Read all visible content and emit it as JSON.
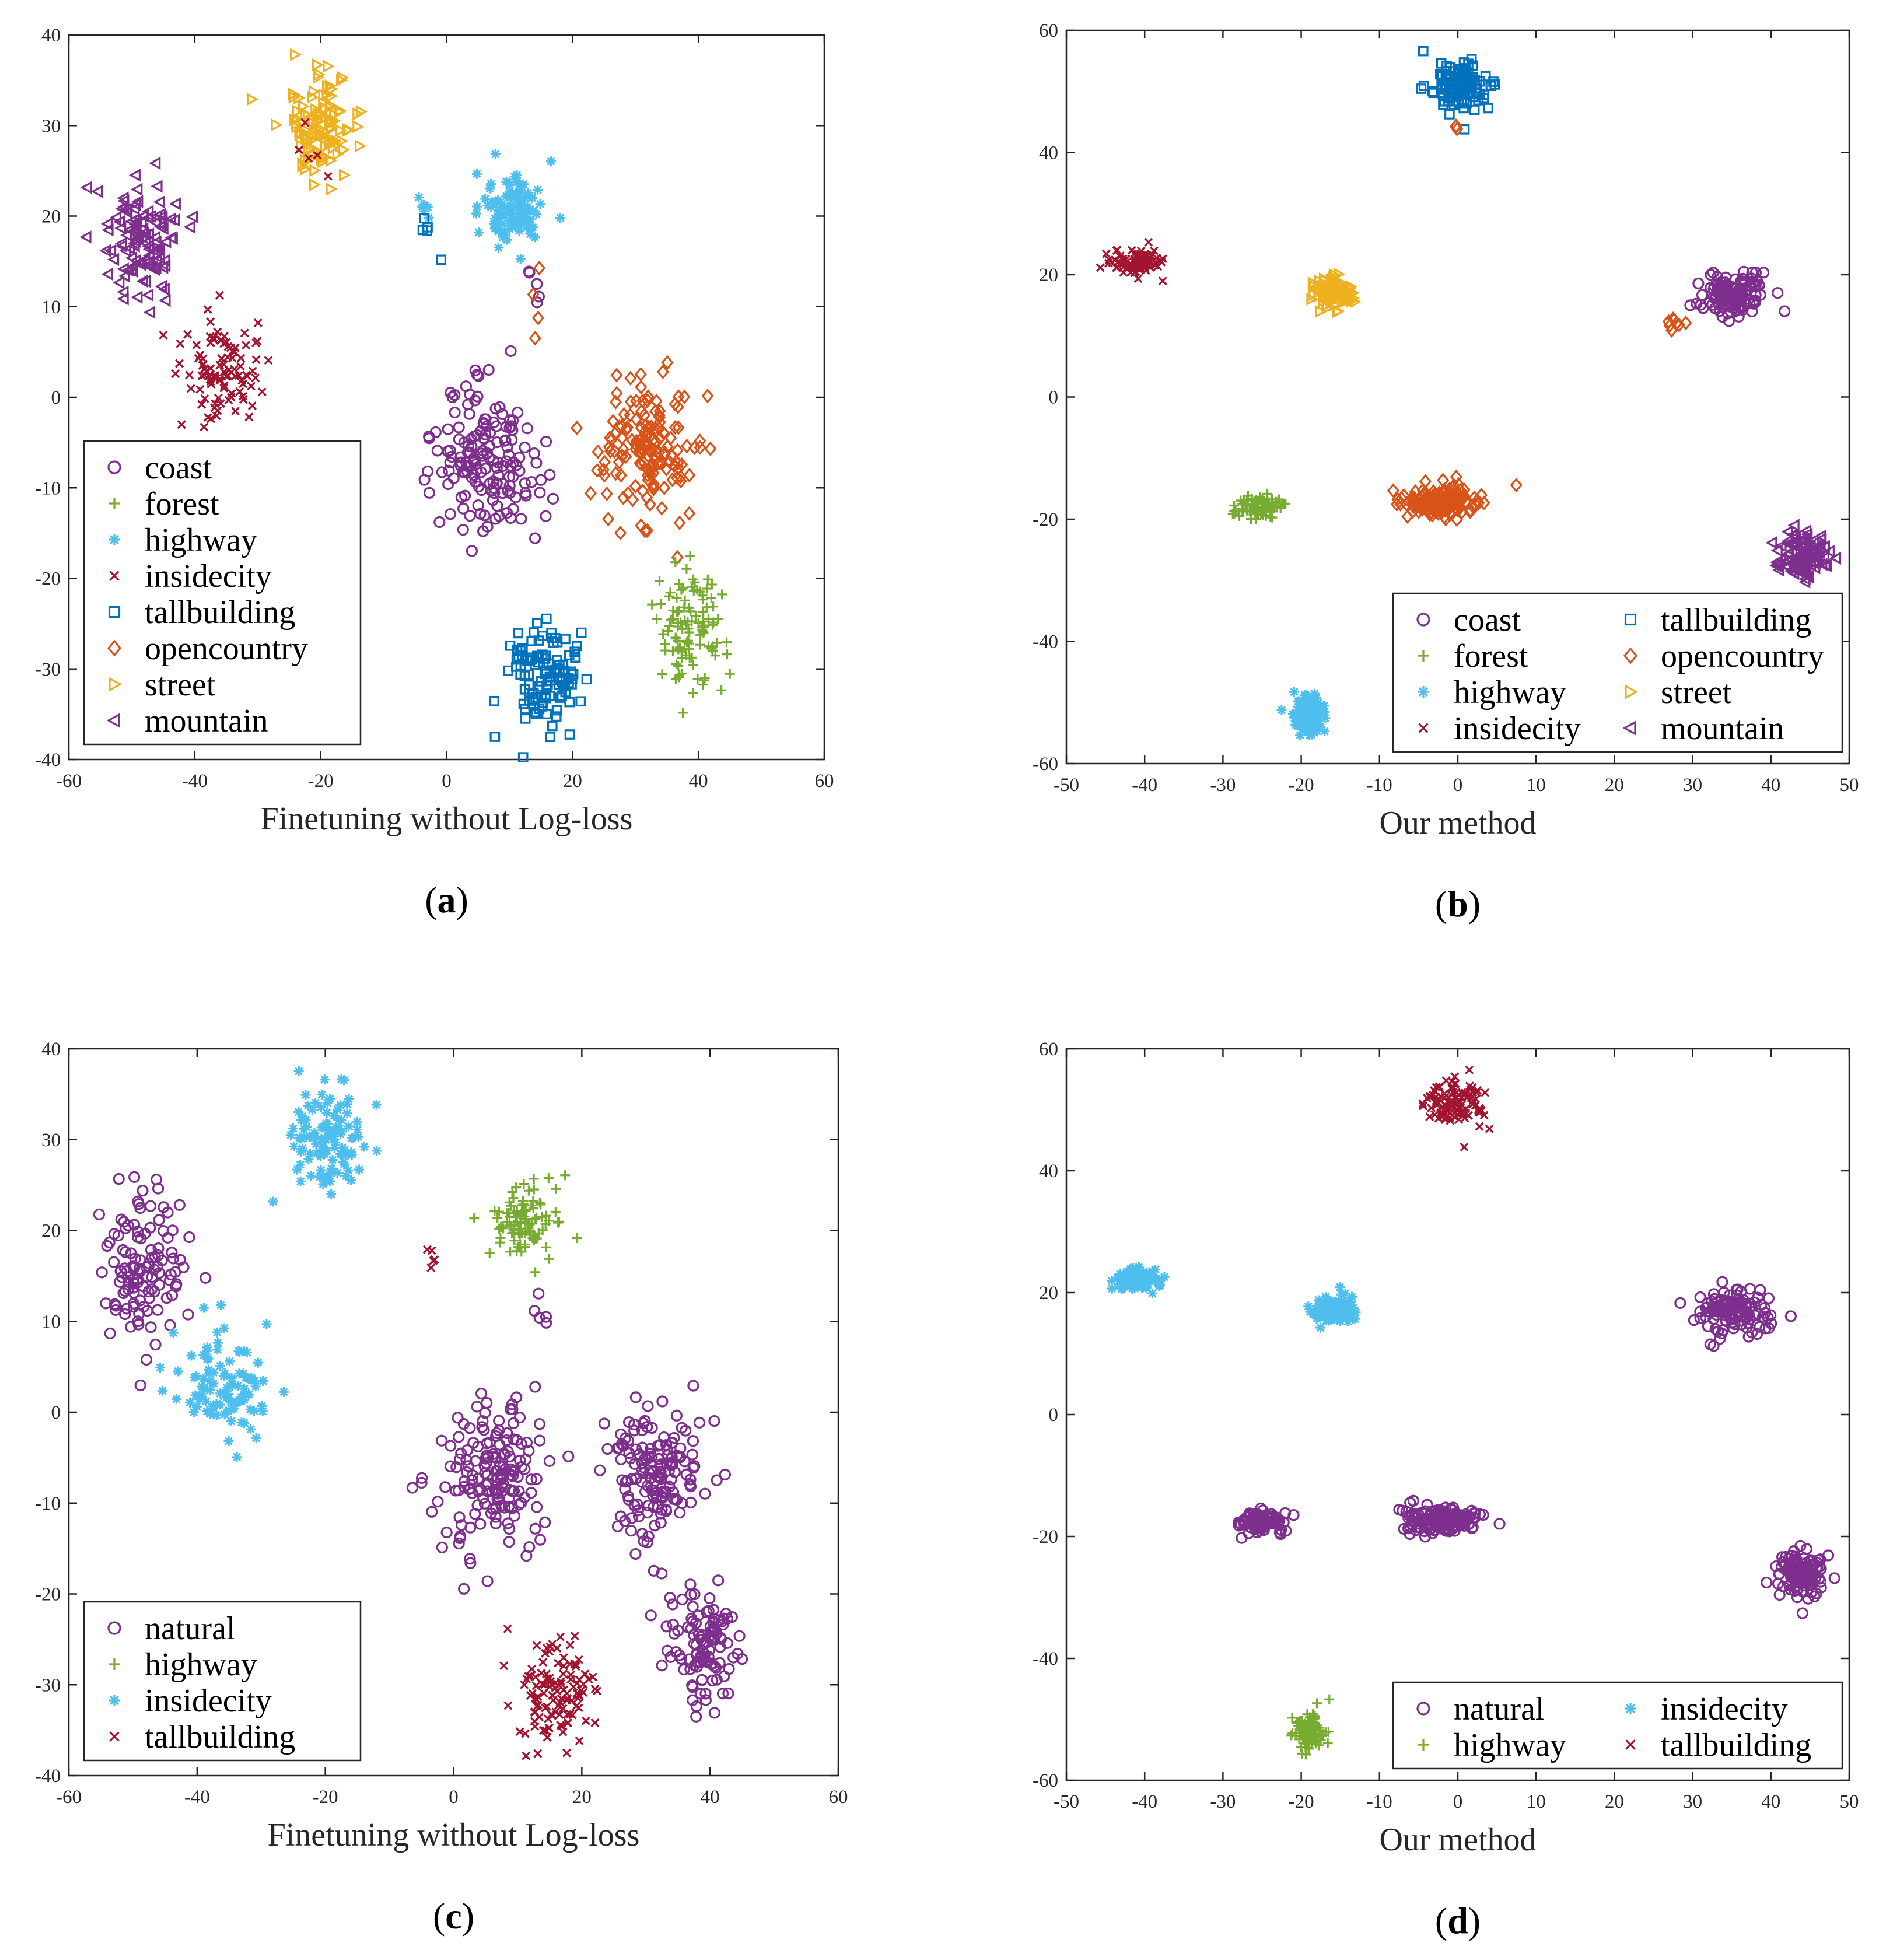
{
  "categories": {
    "coast": {
      "color": "#7E2F8E",
      "marker": "circle"
    },
    "forest": {
      "color": "#77AC30",
      "marker": "plus"
    },
    "highway": {
      "color": "#4DBEEE",
      "marker": "star"
    },
    "insidecity": {
      "color": "#A2142F",
      "marker": "x"
    },
    "tallbuilding": {
      "color": "#0072BD",
      "marker": "square"
    },
    "opencountry": {
      "color": "#D95319",
      "marker": "diamond"
    },
    "street": {
      "color": "#EDB120",
      "marker": "tri-right"
    },
    "mountain": {
      "color": "#7E2F8E",
      "marker": "tri-left"
    },
    "natural": {
      "color": "#7E2F8E",
      "marker": "circle"
    },
    "highway4": {
      "color": "#77AC30",
      "marker": "plus"
    },
    "insidecity4": {
      "color": "#4DBEEE",
      "marker": "star"
    },
    "tallbuilding4": {
      "color": "#A2142F",
      "marker": "x"
    }
  },
  "chart_data": [
    {
      "id": "a",
      "type": "scatter",
      "caption_letter": "a",
      "xlabel": "Finetuning without Log-loss",
      "xlim": [
        -60,
        60
      ],
      "ylim": [
        -40,
        40
      ],
      "xticks": [
        -60,
        -40,
        -20,
        0,
        20,
        40,
        60
      ],
      "yticks": [
        -40,
        -30,
        -20,
        -10,
        0,
        10,
        20,
        30,
        40
      ],
      "legend": {
        "position": "bottom-left",
        "columns": 1,
        "entries": [
          {
            "label": "coast",
            "cat": "coast"
          },
          {
            "label": "forest",
            "cat": "forest"
          },
          {
            "label": "highway",
            "cat": "highway"
          },
          {
            "label": "insidecity",
            "cat": "insidecity"
          },
          {
            "label": "tallbuilding",
            "cat": "tallbuilding"
          },
          {
            "label": "opencountry",
            "cat": "opencountry"
          },
          {
            "label": "street",
            "cat": "street"
          },
          {
            "label": "mountain",
            "cat": "mountain"
          }
        ]
      },
      "clusters": [
        {
          "cat": "mountain",
          "center": [
            -49,
            17
          ],
          "spread": [
            5,
            6
          ],
          "count": 115
        },
        {
          "cat": "insidecity",
          "center": [
            -36,
            3
          ],
          "spread": [
            5,
            5
          ],
          "count": 100
        },
        {
          "cat": "street",
          "center": [
            -20,
            30
          ],
          "spread": [
            4,
            4.5
          ],
          "count": 110
        },
        {
          "cat": "highway",
          "center": [
            11,
            21
          ],
          "spread": [
            4,
            3
          ],
          "count": 100
        },
        {
          "cat": "highway",
          "center": [
            -3,
            21
          ],
          "spread": [
            1.5,
            1.5
          ],
          "count": 6
        },
        {
          "cat": "coast",
          "center": [
            6,
            -7
          ],
          "spread": [
            6,
            6
          ],
          "count": 160
        },
        {
          "cat": "opencountry",
          "center": [
            32,
            -6
          ],
          "spread": [
            6,
            6
          ],
          "count": 150
        },
        {
          "cat": "tallbuilding",
          "center": [
            16,
            -31
          ],
          "spread": [
            4.5,
            4.5
          ],
          "count": 115
        },
        {
          "cat": "forest",
          "center": [
            39,
            -26
          ],
          "spread": [
            4,
            5
          ],
          "count": 110
        },
        {
          "cat": "tallbuilding",
          "center": [
            -3,
            18
          ],
          "spread": [
            1.5,
            2
          ],
          "count": 5
        },
        {
          "cat": "coast",
          "center": [
            14,
            12
          ],
          "spread": [
            1,
            1.5
          ],
          "count": 5
        },
        {
          "cat": "opencountry",
          "center": [
            14,
            8
          ],
          "spread": [
            1.5,
            3
          ],
          "count": 4
        },
        {
          "cat": "insidecity",
          "center": [
            -22,
            28
          ],
          "spread": [
            2,
            3
          ],
          "count": 5
        }
      ]
    },
    {
      "id": "b",
      "type": "scatter",
      "caption_letter": "b",
      "xlabel": "Our method",
      "xlim": [
        -50,
        50
      ],
      "ylim": [
        -60,
        60
      ],
      "xticks": [
        -50,
        -40,
        -30,
        -20,
        -10,
        0,
        10,
        20,
        30,
        40,
        50
      ],
      "yticks": [
        -60,
        -40,
        -20,
        0,
        20,
        40,
        60
      ],
      "legend": {
        "position": "bottom-right",
        "columns": 2,
        "entries": [
          {
            "label": "coast",
            "cat": "coast"
          },
          {
            "label": "tallbuilding",
            "cat": "tallbuilding"
          },
          {
            "label": "forest",
            "cat": "forest"
          },
          {
            "label": "opencountry",
            "cat": "opencountry"
          },
          {
            "label": "highway",
            "cat": "highway"
          },
          {
            "label": "street",
            "cat": "street"
          },
          {
            "label": "insidecity",
            "cat": "insidecity"
          },
          {
            "label": "mountain",
            "cat": "mountain"
          }
        ]
      },
      "clusters": [
        {
          "cat": "tallbuilding",
          "center": [
            0,
            51
          ],
          "spread": [
            3,
            3
          ],
          "count": 110
        },
        {
          "cat": "insidecity",
          "center": [
            -41,
            22
          ],
          "spread": [
            2.5,
            1.5
          ],
          "count": 90
        },
        {
          "cat": "street",
          "center": [
            -16,
            17
          ],
          "spread": [
            2,
            2
          ],
          "count": 100
        },
        {
          "cat": "coast",
          "center": [
            35,
            17
          ],
          "spread": [
            3.5,
            3
          ],
          "count": 120
        },
        {
          "cat": "opencountry",
          "center": [
            28,
            12
          ],
          "spread": [
            1,
            1
          ],
          "count": 8
        },
        {
          "cat": "forest",
          "center": [
            -25,
            -18
          ],
          "spread": [
            2.5,
            1.5
          ],
          "count": 90
        },
        {
          "cat": "opencountry",
          "center": [
            -2,
            -17
          ],
          "spread": [
            4,
            1.8
          ],
          "count": 150
        },
        {
          "cat": "mountain",
          "center": [
            44,
            -26
          ],
          "spread": [
            2.5,
            3
          ],
          "count": 120
        },
        {
          "cat": "highway",
          "center": [
            -19,
            -52
          ],
          "spread": [
            1.5,
            2.5
          ],
          "count": 100
        },
        {
          "cat": "opencountry",
          "center": [
            0,
            44
          ],
          "spread": [
            1,
            1
          ],
          "count": 3
        }
      ]
    },
    {
      "id": "c",
      "type": "scatter",
      "caption_letter": "c",
      "xlabel": "Finetuning without Log-loss",
      "xlim": [
        -60,
        60
      ],
      "ylim": [
        -40,
        40
      ],
      "xticks": [
        -60,
        -40,
        -20,
        0,
        20,
        40,
        60
      ],
      "yticks": [
        -40,
        -30,
        -20,
        -10,
        0,
        10,
        20,
        30,
        40
      ],
      "legend": {
        "position": "bottom-left",
        "columns": 1,
        "entries": [
          {
            "label": "natural",
            "cat": "natural"
          },
          {
            "label": "highway",
            "cat": "highway4"
          },
          {
            "label": "insidecity",
            "cat": "insidecity4"
          },
          {
            "label": "tallbuilding",
            "cat": "tallbuilding4"
          }
        ]
      },
      "clusters": [
        {
          "cat": "natural",
          "center": [
            -49,
            17
          ],
          "spread": [
            5,
            6
          ],
          "count": 115
        },
        {
          "cat": "insidecity4",
          "center": [
            -36,
            3
          ],
          "spread": [
            5,
            5
          ],
          "count": 100
        },
        {
          "cat": "insidecity4",
          "center": [
            -20,
            30
          ],
          "spread": [
            4,
            4.5
          ],
          "count": 110
        },
        {
          "cat": "highway4",
          "center": [
            11,
            21
          ],
          "spread": [
            4,
            3
          ],
          "count": 100
        },
        {
          "cat": "natural",
          "center": [
            6,
            -7
          ],
          "spread": [
            6,
            6
          ],
          "count": 160
        },
        {
          "cat": "natural",
          "center": [
            32,
            -6
          ],
          "spread": [
            6,
            6
          ],
          "count": 150
        },
        {
          "cat": "tallbuilding4",
          "center": [
            16,
            -31
          ],
          "spread": [
            4.5,
            4.5
          ],
          "count": 115
        },
        {
          "cat": "natural",
          "center": [
            39,
            -26
          ],
          "spread": [
            4,
            5
          ],
          "count": 110
        },
        {
          "cat": "natural",
          "center": [
            14,
            12
          ],
          "spread": [
            1,
            1.5
          ],
          "count": 5
        },
        {
          "cat": "tallbuilding4",
          "center": [
            -3,
            16
          ],
          "spread": [
            1.5,
            2
          ],
          "count": 5
        }
      ]
    },
    {
      "id": "d",
      "type": "scatter",
      "caption_letter": "d",
      "xlabel": "Our method",
      "xlim": [
        -50,
        50
      ],
      "ylim": [
        -60,
        60
      ],
      "xticks": [
        -50,
        -40,
        -30,
        -20,
        -10,
        0,
        10,
        20,
        30,
        40,
        50
      ],
      "yticks": [
        -60,
        -40,
        -20,
        0,
        20,
        40,
        60
      ],
      "legend": {
        "position": "bottom-right",
        "columns": 2,
        "entries": [
          {
            "label": "natural",
            "cat": "natural"
          },
          {
            "label": "insidecity",
            "cat": "insidecity4"
          },
          {
            "label": "highway",
            "cat": "highway4"
          },
          {
            "label": "tallbuilding",
            "cat": "tallbuilding4"
          }
        ]
      },
      "clusters": [
        {
          "cat": "tallbuilding4",
          "center": [
            0,
            51
          ],
          "spread": [
            3,
            3
          ],
          "count": 110
        },
        {
          "cat": "insidecity4",
          "center": [
            -41,
            22
          ],
          "spread": [
            2.5,
            1.5
          ],
          "count": 90
        },
        {
          "cat": "insidecity4",
          "center": [
            -16,
            17
          ],
          "spread": [
            2,
            2
          ],
          "count": 100
        },
        {
          "cat": "natural",
          "center": [
            35,
            17
          ],
          "spread": [
            3.5,
            3
          ],
          "count": 120
        },
        {
          "cat": "natural",
          "center": [
            -25,
            -18
          ],
          "spread": [
            2.5,
            1.5
          ],
          "count": 90
        },
        {
          "cat": "natural",
          "center": [
            -2,
            -17
          ],
          "spread": [
            4,
            1.8
          ],
          "count": 150
        },
        {
          "cat": "natural",
          "center": [
            44,
            -26
          ],
          "spread": [
            2.5,
            3
          ],
          "count": 120
        },
        {
          "cat": "highway4",
          "center": [
            -19,
            -52
          ],
          "spread": [
            1.5,
            2.5
          ],
          "count": 100
        }
      ]
    }
  ]
}
